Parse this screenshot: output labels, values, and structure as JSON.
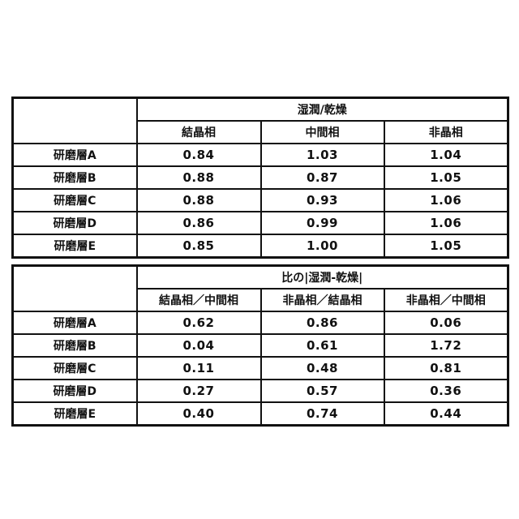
{
  "tables": [
    {
      "group_header": "湿潤/乾燥",
      "columns": [
        "結晶相",
        "中間相",
        "非晶相"
      ],
      "rows": [
        {
          "label": "研磨層A",
          "values": [
            "0.84",
            "1.03",
            "1.04"
          ]
        },
        {
          "label": "研磨層B",
          "values": [
            "0.88",
            "0.87",
            "1.05"
          ]
        },
        {
          "label": "研磨層C",
          "values": [
            "0.88",
            "0.93",
            "1.06"
          ]
        },
        {
          "label": "研磨層D",
          "values": [
            "0.86",
            "0.99",
            "1.06"
          ]
        },
        {
          "label": "研磨層E",
          "values": [
            "0.85",
            "1.00",
            "1.05"
          ]
        }
      ]
    },
    {
      "group_header": "比の|湿潤-乾燥|",
      "columns": [
        "結晶相／中間相",
        "非晶相／結晶相",
        "非晶相／中間相"
      ],
      "rows": [
        {
          "label": "研磨層A",
          "values": [
            "0.62",
            "0.86",
            "0.06"
          ]
        },
        {
          "label": "研磨層B",
          "values": [
            "0.04",
            "0.61",
            "1.72"
          ]
        },
        {
          "label": "研磨層C",
          "values": [
            "0.11",
            "0.48",
            "0.81"
          ]
        },
        {
          "label": "研磨層D",
          "values": [
            "0.27",
            "0.57",
            "0.36"
          ]
        },
        {
          "label": "研磨層E",
          "values": [
            "0.40",
            "0.74",
            "0.44"
          ]
        }
      ]
    }
  ]
}
